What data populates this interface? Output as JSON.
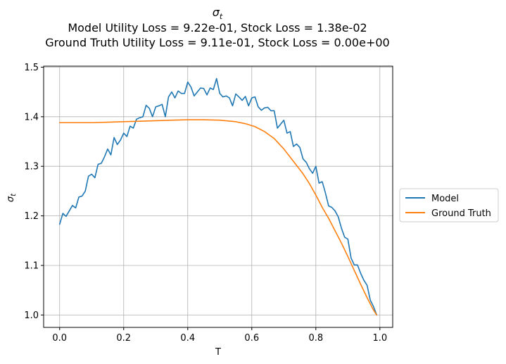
{
  "chart_data": {
    "type": "line",
    "title": {
      "symbol": "σ",
      "subscript": "t",
      "line2": "Model Utility Loss = 9.22e-01, Stock Loss = 1.38e-02",
      "line3": "Ground Truth Utility Loss = 9.11e-01, Stock Loss = 0.00e+00"
    },
    "xlabel": "T",
    "ylabel": {
      "symbol": "σ",
      "subscript": "t"
    },
    "xlim": [
      -0.05,
      1.04
    ],
    "ylim": [
      0.975,
      1.502
    ],
    "xticks": [
      0.0,
      0.2,
      0.4,
      0.6,
      0.8,
      1.0
    ],
    "xtick_labels": [
      "0.0",
      "0.2",
      "0.4",
      "0.6",
      "0.8",
      "1.0"
    ],
    "yticks": [
      1.0,
      1.1,
      1.2,
      1.3,
      1.4,
      1.5
    ],
    "ytick_labels": [
      "1.0",
      "1.1",
      "1.2",
      "1.3",
      "1.4",
      "1.5"
    ],
    "grid": true,
    "legend_position": "outside-right",
    "series": [
      {
        "name": "Model",
        "color": "#1f77b4",
        "x": [
          0.0,
          0.01,
          0.02,
          0.03,
          0.04,
          0.05,
          0.06,
          0.07,
          0.08,
          0.09,
          0.1,
          0.11,
          0.12,
          0.13,
          0.14,
          0.15,
          0.16,
          0.17,
          0.18,
          0.19,
          0.2,
          0.21,
          0.22,
          0.23,
          0.24,
          0.25,
          0.26,
          0.27,
          0.28,
          0.29,
          0.3,
          0.31,
          0.32,
          0.33,
          0.34,
          0.35,
          0.36,
          0.37,
          0.38,
          0.39,
          0.4,
          0.41,
          0.42,
          0.43,
          0.44,
          0.45,
          0.46,
          0.47,
          0.48,
          0.49,
          0.5,
          0.51,
          0.52,
          0.53,
          0.54,
          0.55,
          0.56,
          0.57,
          0.58,
          0.59,
          0.6,
          0.61,
          0.62,
          0.63,
          0.64,
          0.65,
          0.66,
          0.67,
          0.68,
          0.69,
          0.7,
          0.71,
          0.72,
          0.73,
          0.74,
          0.75,
          0.76,
          0.77,
          0.78,
          0.79,
          0.8,
          0.81,
          0.82,
          0.83,
          0.84,
          0.85,
          0.86,
          0.87,
          0.88,
          0.89,
          0.9,
          0.91,
          0.92,
          0.93,
          0.94,
          0.95,
          0.96,
          0.97,
          0.98,
          0.99
        ],
        "y": [
          1.183,
          1.205,
          1.199,
          1.21,
          1.221,
          1.216,
          1.238,
          1.24,
          1.25,
          1.28,
          1.284,
          1.277,
          1.304,
          1.306,
          1.319,
          1.335,
          1.323,
          1.358,
          1.344,
          1.353,
          1.367,
          1.36,
          1.381,
          1.377,
          1.395,
          1.398,
          1.4,
          1.423,
          1.417,
          1.4,
          1.42,
          1.422,
          1.425,
          1.4,
          1.44,
          1.45,
          1.438,
          1.452,
          1.447,
          1.447,
          1.47,
          1.46,
          1.442,
          1.45,
          1.458,
          1.457,
          1.444,
          1.458,
          1.455,
          1.477,
          1.447,
          1.44,
          1.442,
          1.438,
          1.422,
          1.446,
          1.44,
          1.433,
          1.441,
          1.422,
          1.438,
          1.44,
          1.42,
          1.413,
          1.418,
          1.419,
          1.412,
          1.412,
          1.377,
          1.385,
          1.393,
          1.367,
          1.37,
          1.34,
          1.345,
          1.338,
          1.315,
          1.308,
          1.295,
          1.286,
          1.3,
          1.266,
          1.269,
          1.246,
          1.22,
          1.217,
          1.21,
          1.198,
          1.175,
          1.157,
          1.153,
          1.115,
          1.101,
          1.101,
          1.084,
          1.07,
          1.06,
          1.03,
          1.017,
          1.0
        ]
      },
      {
        "name": "Ground Truth",
        "color": "#ff7f0e",
        "x": [
          0.0,
          0.05,
          0.1,
          0.15,
          0.2,
          0.25,
          0.3,
          0.35,
          0.4,
          0.45,
          0.5,
          0.55,
          0.58,
          0.61,
          0.64,
          0.67,
          0.7,
          0.73,
          0.76,
          0.78,
          0.8,
          0.82,
          0.84,
          0.86,
          0.88,
          0.9,
          0.92,
          0.94,
          0.96,
          0.98,
          0.99
        ],
        "y": [
          1.388,
          1.388,
          1.388,
          1.389,
          1.39,
          1.391,
          1.392,
          1.393,
          1.394,
          1.394,
          1.393,
          1.39,
          1.386,
          1.38,
          1.37,
          1.356,
          1.335,
          1.31,
          1.285,
          1.265,
          1.242,
          1.217,
          1.195,
          1.17,
          1.145,
          1.118,
          1.09,
          1.062,
          1.035,
          1.01,
          1.0
        ]
      }
    ]
  }
}
